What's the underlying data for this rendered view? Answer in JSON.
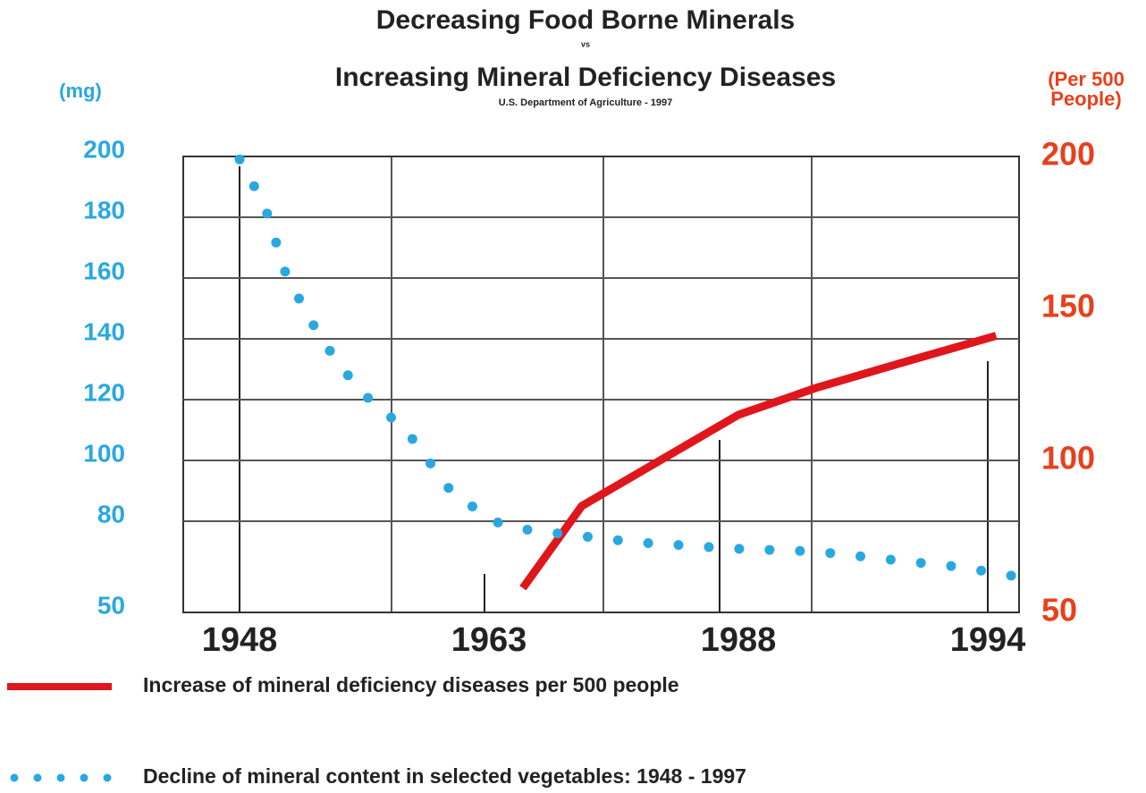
{
  "chart_data": {
    "type": "line",
    "title": "Decreasing Food Borne Minerals",
    "title_joiner": "vs",
    "title_line2": "Increasing Mineral Deficiency Diseases",
    "subtitle": "U.S. Department of Agriculture - 1997",
    "y_label": "(mg)",
    "y2_label": [
      "(Per 500",
      "People)"
    ],
    "categories": [
      "1948",
      "1963",
      "1988",
      "1994"
    ],
    "ylim": [
      50,
      200
    ],
    "yticks": [
      50,
      80,
      100,
      120,
      140,
      160,
      180,
      200
    ],
    "y2lim": [
      50,
      200
    ],
    "y2ticks": [
      50,
      100,
      150,
      200
    ],
    "grid": true,
    "series": [
      {
        "name": "Increase of mineral deficiency diseases per 500 people",
        "color": "#e0161d",
        "axis": "y2",
        "style": "solid",
        "x": [
          1966.4,
          1972.3,
          1988,
          1989.9,
          1991.9,
          1994.2
        ],
        "values": [
          58,
          85,
          115,
          124,
          132,
          141
        ]
      },
      {
        "name": "Decline of mineral content in selected vegetables: 1948 - 1997",
        "color": "#29a8e0",
        "axis": "y",
        "style": "dotted",
        "x": [
          1948,
          1949.5,
          1950.8,
          1952.9,
          1955.2,
          1958,
          1960.7,
          1963.4,
          1967.1,
          1978,
          1987.5,
          1989.9,
          1991.9,
          1993.3,
          1994.6
        ],
        "values": [
          199,
          184,
          161,
          140,
          123,
          110,
          90,
          80,
          77,
          73,
          71,
          70,
          67,
          65,
          62
        ]
      }
    ]
  }
}
